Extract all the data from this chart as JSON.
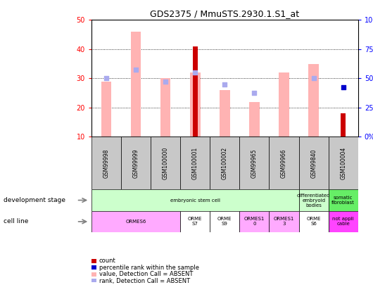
{
  "title": "GDS2375 / MmuSTS.2930.1.S1_at",
  "samples": [
    "GSM99998",
    "GSM99999",
    "GSM100000",
    "GSM100001",
    "GSM100002",
    "GSM99965",
    "GSM99966",
    "GSM99840",
    "GSM100004"
  ],
  "count_values": [
    null,
    null,
    null,
    41,
    null,
    null,
    null,
    null,
    18
  ],
  "rank_percent": [
    null,
    null,
    null,
    null,
    null,
    null,
    null,
    null,
    44
  ],
  "absent_value_bars": [
    29,
    46,
    30,
    32,
    26,
    22,
    32,
    35,
    null
  ],
  "absent_rank_dots_left": [
    30,
    33,
    29,
    32,
    28,
    25,
    null,
    30,
    null
  ],
  "ylim_left": [
    10,
    50
  ],
  "ylim_right": [
    0,
    100
  ],
  "count_color": "#cc0000",
  "rank_color": "#0000cc",
  "absent_value_color": "#ffb3b3",
  "absent_rank_color": "#aaaaee",
  "dev_stage_row": [
    {
      "label": "embryonic stem cell",
      "span": [
        0,
        7
      ],
      "color": "#ccffcc"
    },
    {
      "label": "differentiated\nembryoid\nbodies",
      "span": [
        7,
        8
      ],
      "color": "#ccffcc"
    },
    {
      "label": "somatic\nfibroblast",
      "span": [
        8,
        9
      ],
      "color": "#66ee66"
    }
  ],
  "cell_line_row": [
    {
      "label": "ORMES6",
      "span": [
        0,
        3
      ],
      "color": "#ffaaff"
    },
    {
      "label": "ORME\nS7",
      "span": [
        3,
        4
      ],
      "color": "#ffffff"
    },
    {
      "label": "ORME\nS9",
      "span": [
        4,
        5
      ],
      "color": "#ffffff"
    },
    {
      "label": "ORMES1\n0",
      "span": [
        5,
        6
      ],
      "color": "#ffaaff"
    },
    {
      "label": "ORMES1\n3",
      "span": [
        6,
        7
      ],
      "color": "#ffaaff"
    },
    {
      "label": "ORME\nS6",
      "span": [
        7,
        8
      ],
      "color": "#ffffff"
    },
    {
      "label": "not appli\ncable",
      "span": [
        8,
        9
      ],
      "color": "#ff44ff"
    }
  ],
  "background_color": "#ffffff"
}
